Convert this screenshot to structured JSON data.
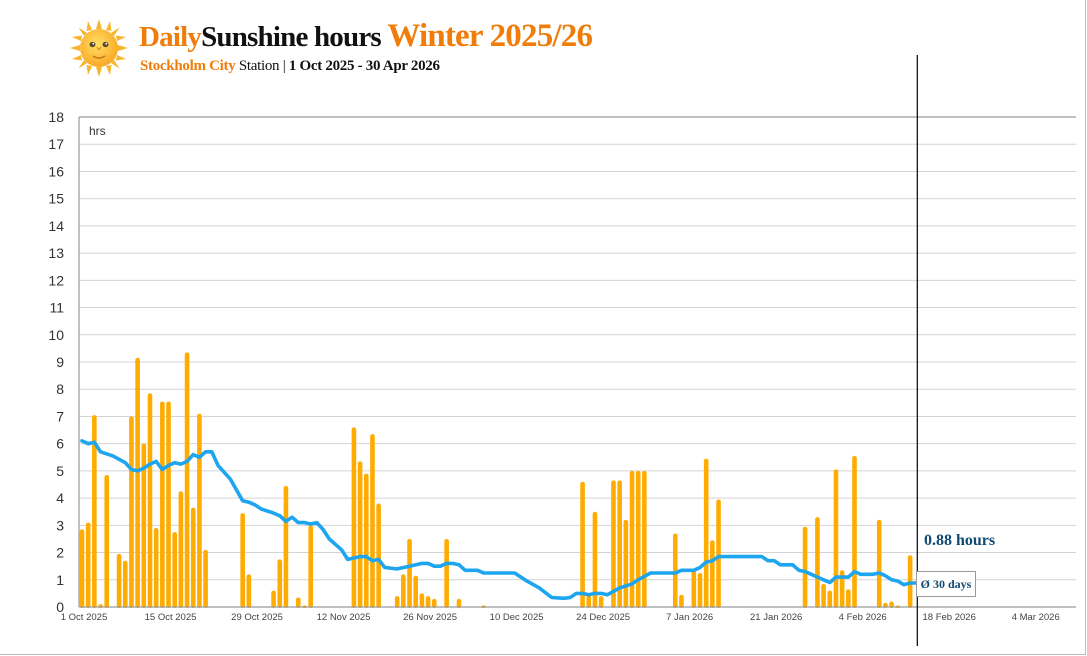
{
  "header": {
    "icon": "sun-with-face-icon",
    "title_part1": "Daily",
    "title_part2": "Sunshine hours",
    "title_part3": "Winter 2025/26",
    "subtitle_station": "Stockholm City",
    "subtitle_station_suffix": "Station",
    "subtitle_separator": "|",
    "subtitle_period": "1 Oct 2025 - 30 Apr 2026"
  },
  "annotation": {
    "value_label": "0.88 hours",
    "average_label": "Ø 30 days"
  },
  "colors": {
    "bars": "#ffab00",
    "moving_average": "#1ea5f0",
    "title_accent": "#f07c0a",
    "annotation_text": "#0f4a75",
    "grid": "#d4d4d4",
    "today_line": "#000000"
  },
  "chart_data": {
    "type": "bar",
    "title": "Daily Sunshine hours Winter 2025/26",
    "subtitle": "Stockholm City Station | 1 Oct 2025 - 30 Apr 2026",
    "xlabel": "",
    "ylabel": "hrs",
    "ylim": [
      0,
      18
    ],
    "yticks": [
      0,
      1,
      2,
      3,
      4,
      5,
      6,
      7,
      8,
      9,
      10,
      11,
      12,
      13,
      14,
      15,
      16,
      17,
      18
    ],
    "grid": true,
    "x_start": "1 Oct 2025",
    "x_days_span": 160,
    "xtick_labels": [
      {
        "day": 0,
        "label": "1 Oct 2025"
      },
      {
        "day": 14,
        "label": "15 Oct 2025"
      },
      {
        "day": 28,
        "label": "29 Oct 2025"
      },
      {
        "day": 42,
        "label": "12 Nov 2025"
      },
      {
        "day": 56,
        "label": "26 Nov 2025"
      },
      {
        "day": 70,
        "label": "10 Dec 2025"
      },
      {
        "day": 84,
        "label": "24 Dec 2025"
      },
      {
        "day": 98,
        "label": "7 Jan 2026"
      },
      {
        "day": 112,
        "label": "21 Jan 2026"
      },
      {
        "day": 126,
        "label": "4 Feb 2026"
      },
      {
        "day": 140,
        "label": "18 Feb 2026"
      },
      {
        "day": 154,
        "label": "4 Mar 2026"
      }
    ],
    "series": [
      {
        "name": "Daily sunshine hours",
        "type": "bar",
        "points": [
          [
            0,
            2.85
          ],
          [
            1,
            3.1
          ],
          [
            2,
            7.05
          ],
          [
            3,
            0.1
          ],
          [
            4,
            4.85
          ],
          [
            6,
            1.95
          ],
          [
            7,
            1.7
          ],
          [
            8,
            7.0
          ],
          [
            9,
            9.15
          ],
          [
            10,
            6.0
          ],
          [
            11,
            7.85
          ],
          [
            12,
            2.9
          ],
          [
            13,
            7.55
          ],
          [
            14,
            7.55
          ],
          [
            15,
            2.75
          ],
          [
            16,
            4.25
          ],
          [
            17,
            9.35
          ],
          [
            18,
            3.65
          ],
          [
            19,
            7.1
          ],
          [
            20,
            2.1
          ],
          [
            26,
            3.45
          ],
          [
            27,
            1.2
          ],
          [
            31,
            0.6
          ],
          [
            32,
            1.75
          ],
          [
            33,
            4.45
          ],
          [
            35,
            0.35
          ],
          [
            36,
            0.05
          ],
          [
            37,
            3.0
          ],
          [
            44,
            6.6
          ],
          [
            45,
            5.35
          ],
          [
            46,
            4.9
          ],
          [
            47,
            6.35
          ],
          [
            48,
            3.8
          ],
          [
            51,
            0.4
          ],
          [
            52,
            1.2
          ],
          [
            53,
            2.5
          ],
          [
            54,
            1.15
          ],
          [
            55,
            0.5
          ],
          [
            56,
            0.4
          ],
          [
            57,
            0.3
          ],
          [
            59,
            2.5
          ],
          [
            61,
            0.3
          ],
          [
            65,
            0.02
          ],
          [
            81,
            4.6
          ],
          [
            82,
            0.5
          ],
          [
            83,
            3.5
          ],
          [
            84,
            0.4
          ],
          [
            86,
            4.65
          ],
          [
            87,
            4.65
          ],
          [
            88,
            3.2
          ],
          [
            89,
            5.0
          ],
          [
            90,
            5.0
          ],
          [
            91,
            5.0
          ],
          [
            96,
            2.7
          ],
          [
            97,
            0.45
          ],
          [
            99,
            1.4
          ],
          [
            100,
            1.25
          ],
          [
            101,
            5.45
          ],
          [
            102,
            2.45
          ],
          [
            103,
            3.95
          ],
          [
            117,
            2.95
          ],
          [
            119,
            3.3
          ],
          [
            120,
            0.85
          ],
          [
            121,
            0.6
          ],
          [
            122,
            5.05
          ],
          [
            123,
            1.35
          ],
          [
            124,
            0.65
          ],
          [
            125,
            5.55
          ],
          [
            129,
            3.2
          ],
          [
            130,
            0.15
          ],
          [
            131,
            0.2
          ],
          [
            132,
            0.02
          ],
          [
            134,
            1.9
          ]
        ]
      },
      {
        "name": "30-day moving average",
        "type": "line",
        "points": [
          [
            0,
            6.1
          ],
          [
            1,
            6.0
          ],
          [
            2,
            6.05
          ],
          [
            3,
            5.7
          ],
          [
            5,
            5.55
          ],
          [
            7,
            5.3
          ],
          [
            8,
            5.05
          ],
          [
            9,
            5.0
          ],
          [
            10,
            5.1
          ],
          [
            11,
            5.25
          ],
          [
            12,
            5.35
          ],
          [
            13,
            5.05
          ],
          [
            14,
            5.2
          ],
          [
            15,
            5.3
          ],
          [
            16,
            5.25
          ],
          [
            17,
            5.35
          ],
          [
            18,
            5.6
          ],
          [
            19,
            5.5
          ],
          [
            20,
            5.7
          ],
          [
            21,
            5.7
          ],
          [
            22,
            5.2
          ],
          [
            24,
            4.7
          ],
          [
            26,
            3.9
          ],
          [
            27,
            3.85
          ],
          [
            28,
            3.75
          ],
          [
            29,
            3.6
          ],
          [
            31,
            3.45
          ],
          [
            32,
            3.35
          ],
          [
            33,
            3.15
          ],
          [
            34,
            3.3
          ],
          [
            35,
            3.1
          ],
          [
            36,
            3.1
          ],
          [
            37,
            3.05
          ],
          [
            38,
            3.1
          ],
          [
            39,
            2.85
          ],
          [
            40,
            2.5
          ],
          [
            41,
            2.3
          ],
          [
            42,
            2.1
          ],
          [
            43,
            1.75
          ],
          [
            45,
            1.85
          ],
          [
            46,
            1.85
          ],
          [
            47,
            1.7
          ],
          [
            48,
            1.75
          ],
          [
            49,
            1.45
          ],
          [
            51,
            1.4
          ],
          [
            53,
            1.5
          ],
          [
            55,
            1.6
          ],
          [
            56,
            1.6
          ],
          [
            57,
            1.5
          ],
          [
            58,
            1.5
          ],
          [
            59,
            1.6
          ],
          [
            60,
            1.6
          ],
          [
            61,
            1.55
          ],
          [
            62,
            1.35
          ],
          [
            64,
            1.35
          ],
          [
            65,
            1.25
          ],
          [
            70,
            1.25
          ],
          [
            72,
            0.95
          ],
          [
            74,
            0.7
          ],
          [
            76,
            0.35
          ],
          [
            78,
            0.32
          ],
          [
            79,
            0.35
          ],
          [
            80,
            0.5
          ],
          [
            81,
            0.5
          ],
          [
            82,
            0.45
          ],
          [
            83,
            0.5
          ],
          [
            84,
            0.5
          ],
          [
            85,
            0.45
          ],
          [
            87,
            0.7
          ],
          [
            89,
            0.85
          ],
          [
            90,
            1.0
          ],
          [
            92,
            1.25
          ],
          [
            96,
            1.25
          ],
          [
            97,
            1.35
          ],
          [
            99,
            1.35
          ],
          [
            100,
            1.45
          ],
          [
            101,
            1.65
          ],
          [
            102,
            1.7
          ],
          [
            103,
            1.85
          ],
          [
            108,
            1.85
          ],
          [
            110,
            1.85
          ],
          [
            111,
            1.7
          ],
          [
            112,
            1.7
          ],
          [
            113,
            1.55
          ],
          [
            115,
            1.55
          ],
          [
            116,
            1.35
          ],
          [
            117,
            1.3
          ],
          [
            118,
            1.2
          ],
          [
            119,
            1.1
          ],
          [
            120,
            1.0
          ],
          [
            121,
            0.9
          ],
          [
            122,
            1.1
          ],
          [
            123,
            1.1
          ],
          [
            124,
            1.1
          ],
          [
            125,
            1.3
          ],
          [
            126,
            1.2
          ],
          [
            128,
            1.2
          ],
          [
            129,
            1.25
          ],
          [
            130,
            1.15
          ],
          [
            131,
            1.0
          ],
          [
            132,
            0.95
          ],
          [
            133,
            0.82
          ],
          [
            134,
            0.88
          ],
          [
            135,
            0.88
          ]
        ]
      }
    ],
    "markers": [
      {
        "type": "vertical_line",
        "day": 135,
        "label": "today"
      }
    ],
    "annotations": [
      "0.88 hours",
      "Ø 30 days"
    ],
    "legend": "none"
  }
}
